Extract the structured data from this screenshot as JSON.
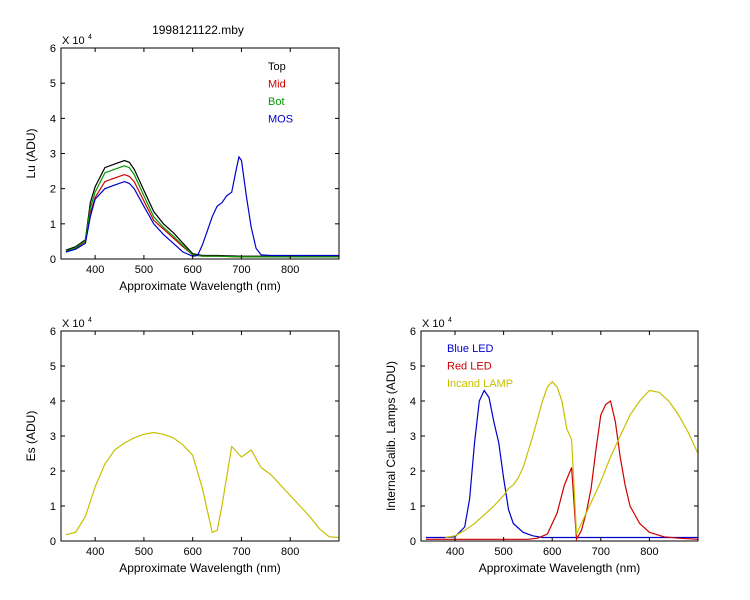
{
  "figure_title": "1998121122.mby",
  "chart_data": [
    {
      "type": "line",
      "id": "lu",
      "exponent_label": "X 10",
      "exponent_power": "4",
      "xlabel": "Approximate Wavelength (nm)",
      "ylabel": "Lu (ADU)",
      "xlim": [
        330,
        900
      ],
      "ylim": [
        0,
        6
      ],
      "xticks": [
        400,
        500,
        600,
        700,
        800
      ],
      "yticks": [
        0,
        1,
        2,
        3,
        4,
        5,
        6
      ],
      "legend_position": "top-right",
      "series": [
        {
          "name": "Top",
          "color": "#000000",
          "x": [
            340,
            360,
            380,
            390,
            400,
            420,
            440,
            460,
            470,
            480,
            500,
            520,
            540,
            560,
            580,
            600,
            620,
            650,
            700,
            750,
            800,
            850,
            900
          ],
          "y": [
            0.25,
            0.35,
            0.55,
            1.6,
            2.05,
            2.6,
            2.7,
            2.8,
            2.75,
            2.55,
            1.95,
            1.35,
            1.0,
            0.75,
            0.45,
            0.15,
            0.1,
            0.1,
            0.08,
            0.08,
            0.08,
            0.08,
            0.08
          ]
        },
        {
          "name": "Mid",
          "color": "#cc0000",
          "x": [
            340,
            360,
            380,
            390,
            400,
            420,
            440,
            460,
            470,
            480,
            500,
            520,
            540,
            560,
            580,
            600,
            620,
            650,
            700,
            750,
            800,
            850,
            900
          ],
          "y": [
            0.22,
            0.3,
            0.5,
            1.3,
            1.75,
            2.2,
            2.3,
            2.4,
            2.35,
            2.2,
            1.65,
            1.1,
            0.85,
            0.6,
            0.35,
            0.12,
            0.08,
            0.08,
            0.06,
            0.06,
            0.06,
            0.06,
            0.06
          ]
        },
        {
          "name": "Bot",
          "color": "#009900",
          "x": [
            340,
            360,
            380,
            390,
            400,
            420,
            440,
            460,
            470,
            480,
            500,
            520,
            540,
            560,
            580,
            600,
            620,
            650,
            700,
            750,
            800,
            850,
            900
          ],
          "y": [
            0.22,
            0.32,
            0.52,
            1.45,
            1.9,
            2.45,
            2.55,
            2.65,
            2.6,
            2.4,
            1.8,
            1.2,
            0.9,
            0.65,
            0.38,
            0.12,
            0.08,
            0.08,
            0.06,
            0.06,
            0.06,
            0.06,
            0.06
          ]
        },
        {
          "name": "MOS",
          "color": "#0000cc",
          "x": [
            340,
            360,
            380,
            390,
            400,
            420,
            440,
            460,
            470,
            480,
            500,
            520,
            540,
            560,
            580,
            600,
            610,
            620,
            630,
            640,
            650,
            660,
            670,
            680,
            690,
            695,
            700,
            710,
            720,
            730,
            740,
            760,
            800,
            850,
            900
          ],
          "y": [
            0.2,
            0.28,
            0.45,
            1.2,
            1.7,
            2.0,
            2.1,
            2.2,
            2.15,
            2.0,
            1.5,
            1.0,
            0.7,
            0.45,
            0.2,
            0.08,
            0.1,
            0.4,
            0.8,
            1.2,
            1.5,
            1.6,
            1.8,
            1.9,
            2.6,
            2.9,
            2.8,
            1.8,
            0.9,
            0.3,
            0.12,
            0.1,
            0.1,
            0.1,
            0.1
          ]
        }
      ]
    },
    {
      "type": "line",
      "id": "es",
      "exponent_label": "X 10",
      "exponent_power": "4",
      "xlabel": "Approximate Wavelength (nm)",
      "ylabel": "Es (ADU)",
      "xlim": [
        330,
        900
      ],
      "ylim": [
        0,
        6
      ],
      "xticks": [
        400,
        500,
        600,
        700,
        800
      ],
      "yticks": [
        0,
        1,
        2,
        3,
        4,
        5,
        6
      ],
      "series": [
        {
          "name": "",
          "color": "#c8c000",
          "x": [
            340,
            360,
            380,
            400,
            420,
            440,
            460,
            480,
            500,
            520,
            540,
            560,
            580,
            600,
            620,
            640,
            650,
            660,
            680,
            700,
            720,
            740,
            760,
            780,
            800,
            820,
            840,
            860,
            880,
            900
          ],
          "y": [
            0.18,
            0.25,
            0.7,
            1.55,
            2.2,
            2.6,
            2.8,
            2.95,
            3.05,
            3.1,
            3.05,
            2.95,
            2.75,
            2.45,
            1.5,
            0.25,
            0.3,
            1.0,
            2.7,
            2.4,
            2.6,
            2.1,
            1.9,
            1.6,
            1.3,
            1.0,
            0.7,
            0.35,
            0.12,
            0.1
          ]
        }
      ]
    },
    {
      "type": "line",
      "id": "lamps",
      "exponent_label": "X 10",
      "exponent_power": "4",
      "xlabel": "Approximate Wavelength (nm)",
      "ylabel": "Internal Calib. Lamps (ADU)",
      "xlim": [
        330,
        900
      ],
      "ylim": [
        0,
        6
      ],
      "xticks": [
        400,
        500,
        600,
        700,
        800
      ],
      "yticks": [
        0,
        1,
        2,
        3,
        4,
        5,
        6
      ],
      "legend_position": "top-left",
      "series": [
        {
          "name": "Blue LED",
          "color": "#0000cc",
          "x": [
            340,
            380,
            400,
            420,
            430,
            440,
            450,
            460,
            470,
            480,
            490,
            500,
            510,
            520,
            540,
            560,
            580,
            600,
            650,
            700,
            750,
            800,
            850,
            900
          ],
          "y": [
            0.1,
            0.1,
            0.12,
            0.4,
            1.2,
            2.8,
            4.0,
            4.3,
            4.1,
            3.4,
            2.8,
            1.8,
            0.9,
            0.5,
            0.25,
            0.15,
            0.1,
            0.1,
            0.1,
            0.1,
            0.1,
            0.1,
            0.1,
            0.1
          ]
        },
        {
          "name": "Red LED",
          "color": "#cc0000",
          "x": [
            340,
            500,
            550,
            570,
            590,
            610,
            625,
            640,
            650,
            660,
            670,
            680,
            690,
            700,
            710,
            720,
            730,
            740,
            750,
            760,
            780,
            800,
            830,
            860,
            900
          ],
          "y": [
            0.05,
            0.05,
            0.05,
            0.08,
            0.2,
            0.8,
            1.6,
            2.1,
            0.05,
            0.3,
            0.8,
            1.5,
            2.6,
            3.6,
            3.9,
            4.0,
            3.4,
            2.4,
            1.6,
            1.0,
            0.5,
            0.25,
            0.12,
            0.08,
            0.05
          ]
        },
        {
          "name": "Incand LAMP",
          "color": "#c8c000",
          "x": [
            380,
            400,
            420,
            440,
            460,
            480,
            500,
            510,
            520,
            530,
            540,
            560,
            580,
            590,
            600,
            610,
            620,
            630,
            640,
            650,
            660,
            680,
            700,
            720,
            740,
            760,
            780,
            800,
            820,
            840,
            860,
            880,
            900
          ],
          "y": [
            0.1,
            0.15,
            0.3,
            0.5,
            0.75,
            1.0,
            1.3,
            1.5,
            1.6,
            1.8,
            2.1,
            3.0,
            4.0,
            4.4,
            4.55,
            4.4,
            4.0,
            3.2,
            2.9,
            0.2,
            0.5,
            1.1,
            1.7,
            2.4,
            3.0,
            3.6,
            4.0,
            4.3,
            4.25,
            4.0,
            3.6,
            3.1,
            2.5
          ]
        }
      ]
    }
  ]
}
